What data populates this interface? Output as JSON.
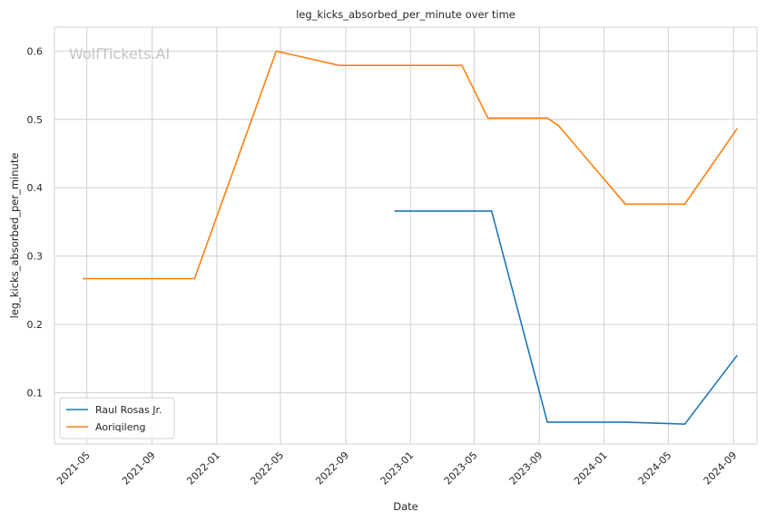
{
  "chart_data": {
    "type": "line",
    "title": "leg_kicks_absorbed_per_minute over time",
    "xlabel": "Date",
    "ylabel": "leg_kicks_absorbed_per_minute",
    "watermark": "WolfTickets.AI",
    "xlim": [
      "2021-03-01",
      "2024-10-15"
    ],
    "ylim": [
      0.025,
      0.635
    ],
    "x_ticks": [
      "2021-05-01",
      "2021-09-01",
      "2022-01-01",
      "2022-05-01",
      "2022-09-01",
      "2023-01-01",
      "2023-05-01",
      "2023-09-01",
      "2024-01-01",
      "2024-05-01",
      "2024-09-01"
    ],
    "x_tick_labels": [
      "2021-05",
      "2021-09",
      "2022-01",
      "2022-05",
      "2022-09",
      "2023-01",
      "2023-05",
      "2023-09",
      "2024-01",
      "2024-05",
      "2024-09"
    ],
    "y_ticks": [
      0.1,
      0.2,
      0.3,
      0.4,
      0.5,
      0.6
    ],
    "y_tick_labels": [
      "0.1",
      "0.2",
      "0.3",
      "0.4",
      "0.5",
      "0.6"
    ],
    "grid": true,
    "legend_position": "lower-left",
    "series": [
      {
        "name": "Raul Rosas Jr.",
        "color": "#1f77b4",
        "points": [
          {
            "x": "2022-12-03",
            "y": 0.366
          },
          {
            "x": "2023-06-03",
            "y": 0.366
          },
          {
            "x": "2023-09-16",
            "y": 0.057
          },
          {
            "x": "2024-02-10",
            "y": 0.057
          },
          {
            "x": "2024-06-01",
            "y": 0.054
          },
          {
            "x": "2024-09-07",
            "y": 0.154
          }
        ]
      },
      {
        "name": "Aoriqileng",
        "color": "#ff7f0e",
        "points": [
          {
            "x": "2021-04-24",
            "y": 0.267
          },
          {
            "x": "2021-11-20",
            "y": 0.267
          },
          {
            "x": "2022-04-23",
            "y": 0.6
          },
          {
            "x": "2022-08-20",
            "y": 0.579
          },
          {
            "x": "2023-04-08",
            "y": 0.579
          },
          {
            "x": "2023-05-27",
            "y": 0.502
          },
          {
            "x": "2023-09-16",
            "y": 0.502
          },
          {
            "x": "2023-10-07",
            "y": 0.491
          },
          {
            "x": "2024-02-10",
            "y": 0.376
          },
          {
            "x": "2024-06-01",
            "y": 0.376
          },
          {
            "x": "2024-09-07",
            "y": 0.486
          }
        ]
      }
    ]
  }
}
